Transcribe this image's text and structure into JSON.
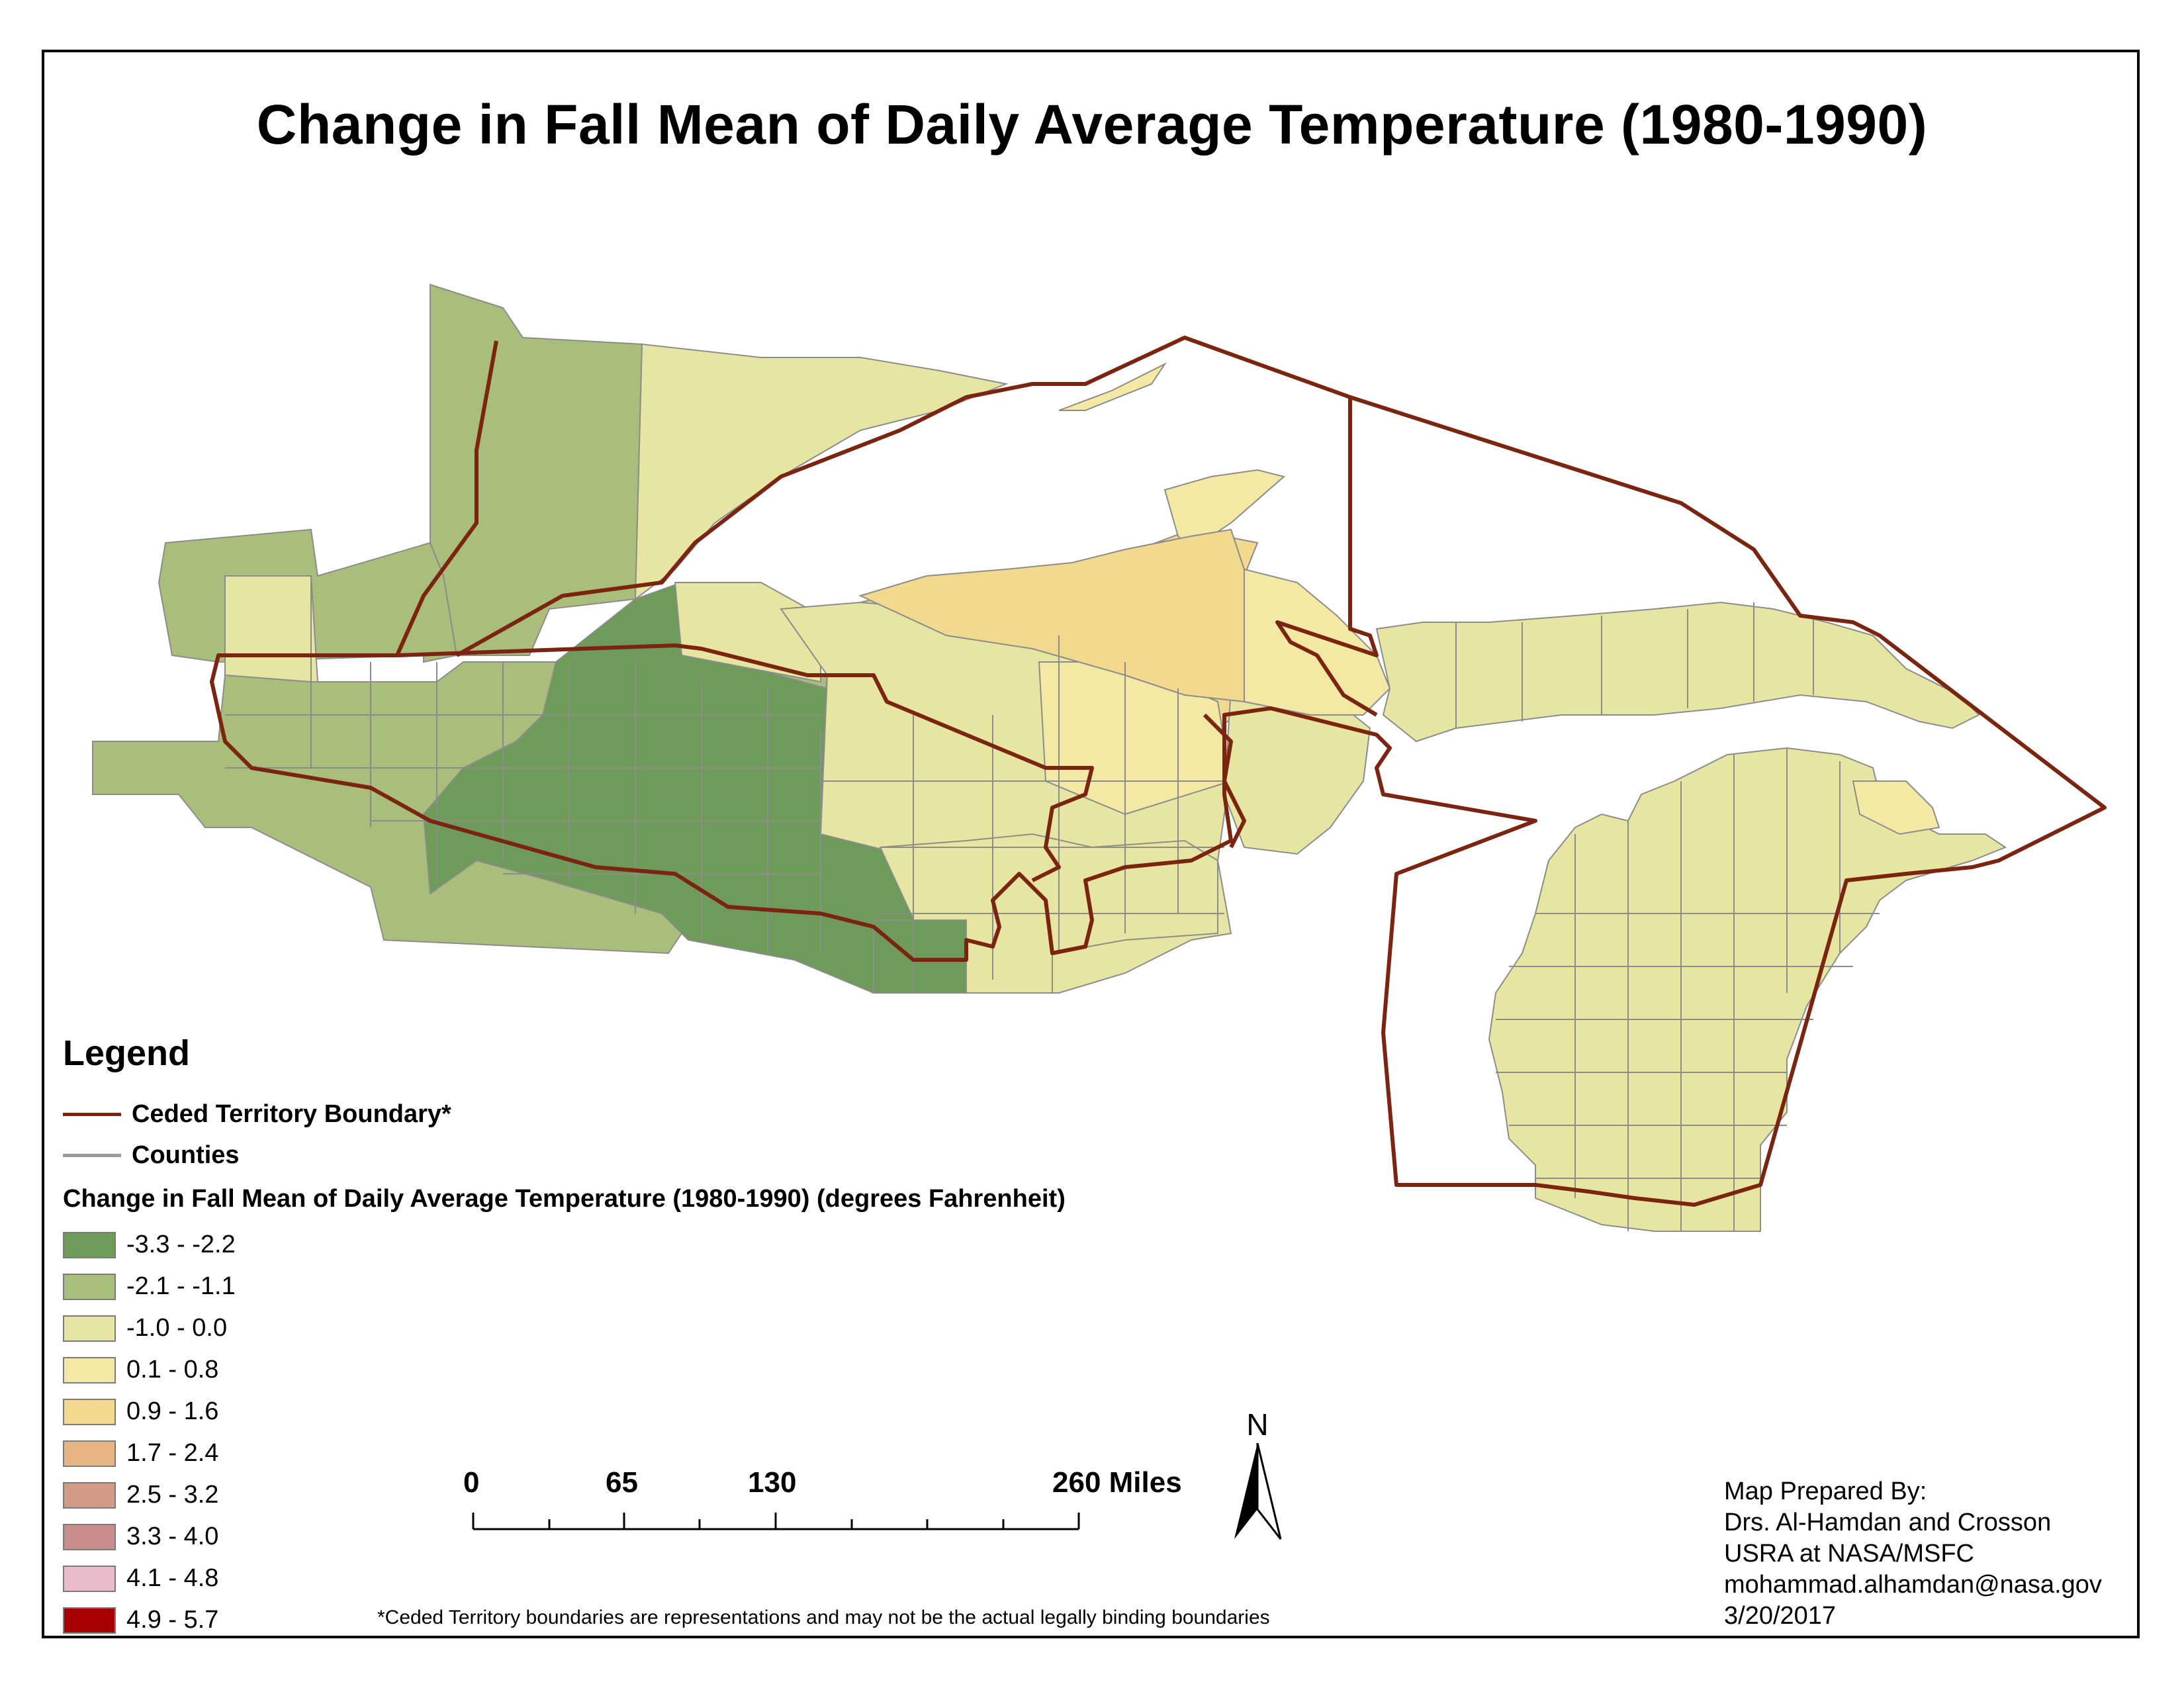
{
  "title": "Change in Fall Mean of Daily Average Temperature (1980-1990)",
  "legend": {
    "heading": "Legend",
    "boundary_label": "Ceded Territory Boundary*",
    "boundary_color": "#7b2410",
    "counties_label": "Counties",
    "counties_color": "#9a9a9a",
    "field_title": "Change in Fall Mean of Daily Average Temperature (1980-1990) (degrees Fahrenheit)",
    "classes": [
      {
        "label": "-3.3 - -2.2",
        "color": "#6e9a5a"
      },
      {
        "label": "-2.1 - -1.1",
        "color": "#a9be7b"
      },
      {
        "label": "-1.0 - 0.0",
        "color": "#e6e6a2"
      },
      {
        "label": "0.1 - 0.8",
        "color": "#f3e8a4"
      },
      {
        "label": "0.9 - 1.6",
        "color": "#f2d98e"
      },
      {
        "label": "1.7 - 2.4",
        "color": "#e6b582"
      },
      {
        "label": "2.5 - 3.2",
        "color": "#d29b86"
      },
      {
        "label": "3.3 - 4.0",
        "color": "#c88e8e"
      },
      {
        "label": "4.1 - 4.8",
        "color": "#e9bccb"
      },
      {
        "label": "4.9 - 5.7",
        "color": "#a80000"
      }
    ]
  },
  "scale_bar": {
    "labels": [
      "0",
      "65",
      "130",
      "260 Miles"
    ]
  },
  "north_arrow": {
    "label": "N",
    "icon": "north-arrow-icon"
  },
  "credits": {
    "line1": "Map Prepared By:",
    "line2": "Drs. Al-Hamdan and Crosson",
    "line3": "USRA at NASA/MSFC",
    "line4": "mohammad.alhamdan@nasa.gov",
    "line5": "3/20/2017"
  },
  "footnote": "*Ceded Territory boundaries are representations and may not be the actual legally binding boundaries",
  "map_colors": {
    "dark_green": "#6e9a5a",
    "green": "#a9be7b",
    "pale_yellow": "#e6e6a2",
    "light_yellow": "#f3e8a4",
    "tan": "#f2d98e",
    "county_line": "#8c8c8c",
    "boundary": "#7b2410"
  }
}
